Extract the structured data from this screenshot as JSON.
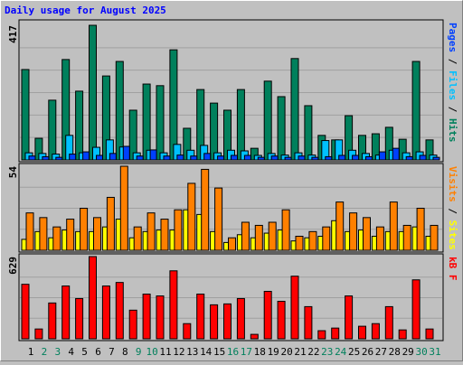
{
  "chart_data": [
    {
      "type": "bar",
      "title": "Daily usage for August 2025",
      "title_color": "#0000ff",
      "ylim": [
        0,
        417
      ],
      "yticks": [
        417
      ],
      "series": [
        {
          "name": "Hits",
          "color": "#00805c",
          "values": [
            280,
            67,
            185,
            311,
            213,
            417,
            260,
            305,
            154,
            235,
            230,
            341,
            98,
            218,
            176,
            154,
            218,
            36,
            244,
            196,
            314,
            168,
            76,
            62,
            137,
            76,
            81,
            101,
            64,
            305,
            62
          ]
        },
        {
          "name": "Files",
          "color": "#00c0ff",
          "values": [
            22,
            20,
            18,
            76,
            22,
            39,
            62,
            40,
            22,
            30,
            22,
            48,
            30,
            45,
            22,
            30,
            28,
            14,
            20,
            15,
            22,
            15,
            60,
            62,
            30,
            20,
            15,
            30,
            22,
            25,
            15
          ]
        },
        {
          "name": "Pages",
          "color": "#0040ff",
          "values": [
            12,
            10,
            8,
            18,
            25,
            14,
            20,
            42,
            12,
            31,
            12,
            15,
            12,
            20,
            12,
            14,
            14,
            8,
            12,
            8,
            12,
            8,
            10,
            14,
            14,
            10,
            25,
            36,
            10,
            14,
            8
          ]
        }
      ]
    },
    {
      "type": "bar",
      "ylim": [
        0,
        54
      ],
      "yticks": [
        54
      ],
      "series": [
        {
          "name": "Sites",
          "color": "#ffff00",
          "values": [
            7,
            12,
            8,
            13,
            12,
            12,
            15,
            20,
            8,
            12,
            13,
            13,
            26,
            23,
            12,
            5,
            10,
            8,
            11,
            13,
            6,
            8,
            9,
            19,
            12,
            13,
            9,
            12,
            12,
            15,
            9
          ]
        },
        {
          "name": "Visits",
          "color": "#ff8000",
          "values": [
            24,
            21,
            15,
            20,
            27,
            21,
            34,
            54,
            15,
            24,
            20,
            26,
            43,
            52,
            40,
            8,
            18,
            16,
            18,
            26,
            9,
            12,
            15,
            31,
            24,
            21,
            15,
            31,
            16,
            27,
            16
          ]
        }
      ]
    },
    {
      "type": "bar",
      "ylim": [
        0,
        629
      ],
      "yticks": [
        629
      ],
      "categories": [
        "1",
        "2",
        "3",
        "4",
        "5",
        "6",
        "7",
        "8",
        "9",
        "10",
        "11",
        "12",
        "13",
        "14",
        "15",
        "16",
        "17",
        "18",
        "19",
        "20",
        "21",
        "22",
        "23",
        "24",
        "25",
        "26",
        "27",
        "28",
        "29",
        "30",
        "31"
      ],
      "category_colors": [
        "#000000",
        "#00805c",
        "#00805c",
        "#000000",
        "#000000",
        "#000000",
        "#000000",
        "#000000",
        "#00805c",
        "#00805c",
        "#000000",
        "#000000",
        "#000000",
        "#000000",
        "#000000",
        "#00805c",
        "#00805c",
        "#000000",
        "#000000",
        "#000000",
        "#000000",
        "#000000",
        "#00805c",
        "#00805c",
        "#000000",
        "#000000",
        "#000000",
        "#000000",
        "#000000",
        "#00805c",
        "#00805c"
      ],
      "series": [
        {
          "name": "kB F",
          "color": "#ff0000",
          "values": [
            417,
            75,
            274,
            404,
            308,
            629,
            404,
            431,
            219,
            342,
            328,
            520,
            116,
            342,
            260,
            267,
            308,
            34,
            363,
            287,
            479,
            246,
            62,
            82,
            328,
            96,
            116,
            246,
            68,
            451,
            75
          ]
        }
      ]
    }
  ]
}
